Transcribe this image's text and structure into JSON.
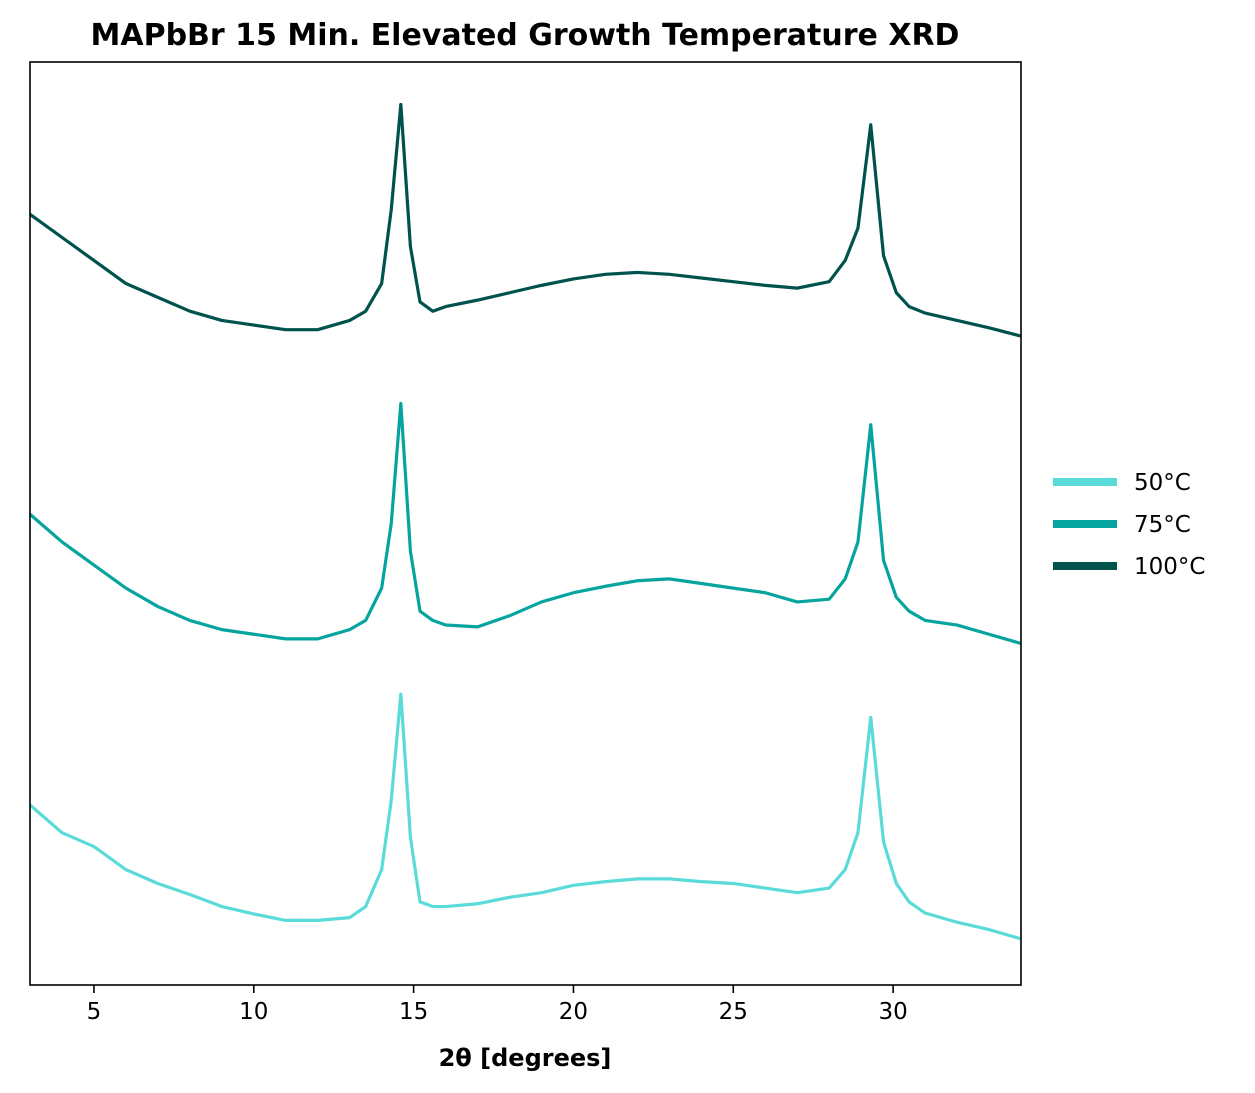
{
  "chart_data": {
    "type": "line",
    "title": "MAPbBr 15 Min. Elevated Growth Temperature XRD",
    "xlabel": "2θ [degrees]",
    "ylabel": "",
    "xlim": [
      3,
      34
    ],
    "ylim": [
      0,
      1
    ],
    "x_ticks": [
      5,
      10,
      15,
      20,
      25,
      30
    ],
    "x_tick_labels": [
      "5",
      "10",
      "15",
      "20",
      "25",
      "30"
    ],
    "y_ticks_shown": false,
    "grid": false,
    "legend_position": "right-center",
    "x": [
      3,
      4,
      5,
      6,
      7,
      8,
      9,
      10,
      11,
      12,
      13,
      13.5,
      14,
      14.3,
      14.6,
      14.9,
      15.2,
      15.6,
      16,
      17,
      18,
      19,
      20,
      21,
      22,
      23,
      24,
      25,
      26,
      27,
      28,
      28.5,
      28.9,
      29.3,
      29.7,
      30.1,
      30.5,
      31,
      32,
      33,
      34
    ],
    "series": [
      {
        "name": "50°C",
        "color": "#5ADBD9",
        "values": [
          0.195,
          0.165,
          0.15,
          0.125,
          0.11,
          0.098,
          0.085,
          0.077,
          0.07,
          0.07,
          0.073,
          0.085,
          0.125,
          0.2,
          0.315,
          0.16,
          0.09,
          0.085,
          0.085,
          0.088,
          0.095,
          0.1,
          0.108,
          0.112,
          0.115,
          0.115,
          0.112,
          0.11,
          0.105,
          0.1,
          0.105,
          0.125,
          0.165,
          0.29,
          0.155,
          0.11,
          0.09,
          0.078,
          0.068,
          0.06,
          0.05
        ]
      },
      {
        "name": "75°C",
        "color": "#06A49E",
        "values": [
          0.51,
          0.48,
          0.455,
          0.43,
          0.41,
          0.395,
          0.385,
          0.38,
          0.375,
          0.375,
          0.385,
          0.395,
          0.43,
          0.5,
          0.63,
          0.47,
          0.405,
          0.395,
          0.39,
          0.388,
          0.4,
          0.415,
          0.425,
          0.432,
          0.438,
          0.44,
          0.435,
          0.43,
          0.425,
          0.415,
          0.418,
          0.44,
          0.48,
          0.607,
          0.46,
          0.42,
          0.405,
          0.395,
          0.39,
          0.38,
          0.37
        ]
      },
      {
        "name": "100°C",
        "color": "#00524C",
        "values": [
          0.835,
          0.81,
          0.785,
          0.76,
          0.745,
          0.73,
          0.72,
          0.715,
          0.71,
          0.71,
          0.72,
          0.73,
          0.76,
          0.84,
          0.954,
          0.8,
          0.74,
          0.73,
          0.735,
          0.742,
          0.75,
          0.758,
          0.765,
          0.77,
          0.772,
          0.77,
          0.766,
          0.762,
          0.758,
          0.755,
          0.762,
          0.785,
          0.82,
          0.932,
          0.79,
          0.75,
          0.735,
          0.728,
          0.72,
          0.712,
          0.703
        ]
      }
    ]
  }
}
